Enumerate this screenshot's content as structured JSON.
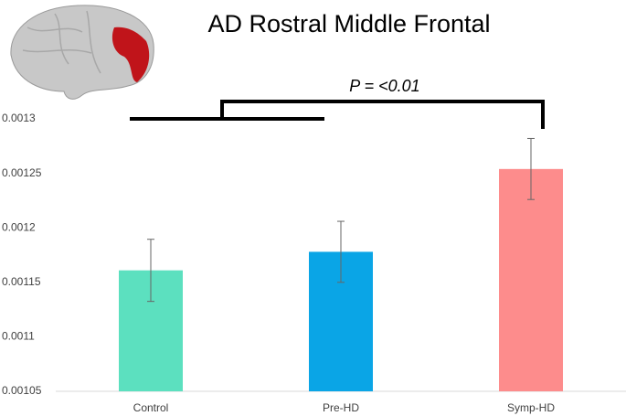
{
  "chart_data": {
    "type": "bar",
    "title": "AD Rostral Middle Frontal",
    "annotation": "P = <0.01",
    "categories": [
      "Control",
      "Pre-HD",
      "Symp-HD"
    ],
    "values": [
      0.001161,
      0.001178,
      0.001254
    ],
    "errors": [
      2.85e-05,
      2.8e-05,
      2.8e-05
    ],
    "colors": [
      "#5ce0bf",
      "#0aa5e6",
      "#fd8c8c"
    ],
    "ylim": [
      0.00105,
      0.0013
    ],
    "yticks": [
      0.00105,
      0.0011,
      0.00115,
      0.0012,
      0.00125,
      0.0013
    ],
    "grid": false
  }
}
